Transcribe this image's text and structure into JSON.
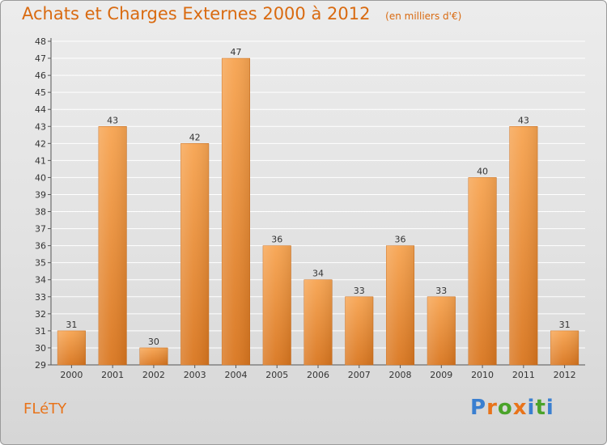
{
  "header": {
    "title": "Achats et Charges Externes 2000 à 2012",
    "subtitle": "(en milliers d'€)"
  },
  "footer": {
    "commune": "FLéTY",
    "logo": {
      "text": "Proxiti",
      "letter_colors": [
        "#3a7fd0",
        "#e8731a",
        "#4aa32a",
        "#e8731a",
        "#3a7fd0",
        "#4aa32a",
        "#3a7fd0"
      ]
    }
  },
  "colors": {
    "bar_top": "#f7a451",
    "bar_bottom": "#d9761f",
    "grid": "#ffffff",
    "title": "#d96a10"
  },
  "chart_data": {
    "type": "bar",
    "title": "Achats et Charges Externes 2000 à 2012",
    "subtitle": "(en milliers d'€)",
    "categories": [
      "2000",
      "2001",
      "2002",
      "2003",
      "2004",
      "2005",
      "2006",
      "2007",
      "2008",
      "2009",
      "2010",
      "2011",
      "2012"
    ],
    "values": [
      31,
      43,
      30,
      42,
      47,
      36,
      34,
      33,
      36,
      33,
      40,
      43,
      31
    ],
    "xlabel": "",
    "ylabel": "",
    "ylim": [
      29,
      48
    ],
    "ytick_step": 1,
    "grid": true,
    "data_labels": true
  }
}
